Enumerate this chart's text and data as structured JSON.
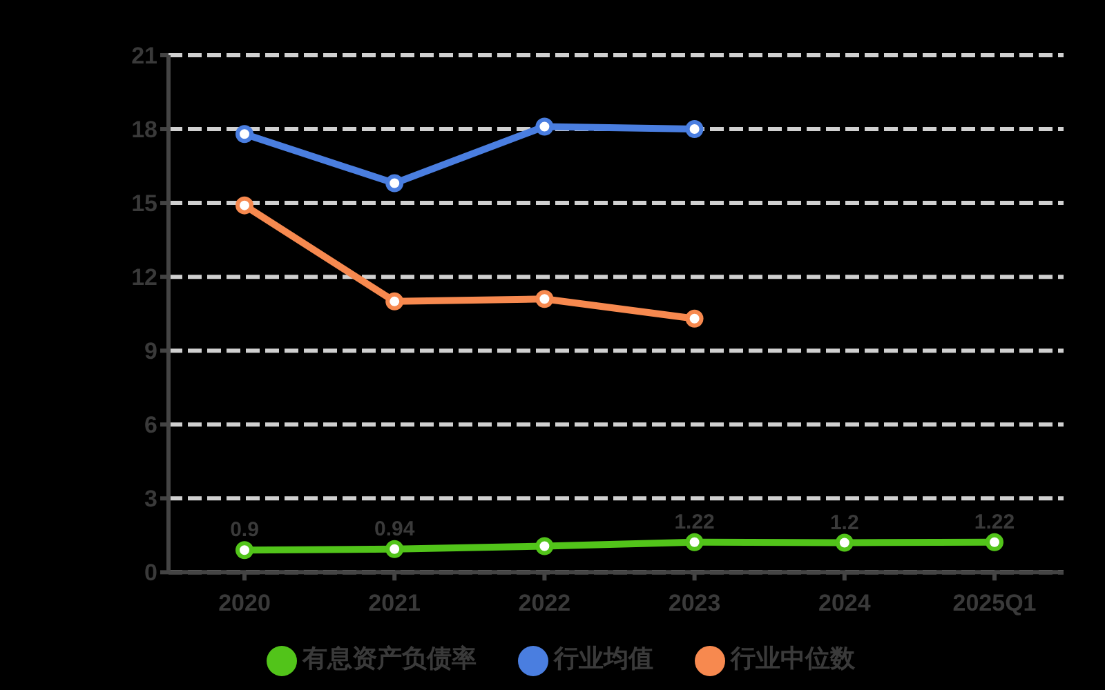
{
  "chart_data": {
    "type": "line",
    "categories": [
      "2020",
      "2021",
      "2022",
      "2023",
      "2024",
      "2025Q1"
    ],
    "series": [
      {
        "name": "有息资产负债率",
        "color": "#52c41a",
        "values": [
          0.9,
          0.94,
          1.06,
          1.22,
          1.2,
          1.22
        ],
        "value_labels": [
          "0.9",
          "0.94",
          null,
          "1.22",
          "1.2",
          "1.22"
        ]
      },
      {
        "name": "行业均值",
        "color": "#4a7ee0",
        "values": [
          17.8,
          15.8,
          18.1,
          18.0,
          null,
          null
        ]
      },
      {
        "name": "行业中位数",
        "color": "#f7894f",
        "values": [
          14.9,
          11.0,
          11.1,
          10.3,
          null,
          null
        ]
      }
    ],
    "ylim": [
      0,
      21
    ],
    "yticks": [
      0,
      3,
      6,
      9,
      12,
      15,
      18,
      21
    ],
    "grid": "y",
    "legend": "bottom",
    "marker": "circle"
  }
}
